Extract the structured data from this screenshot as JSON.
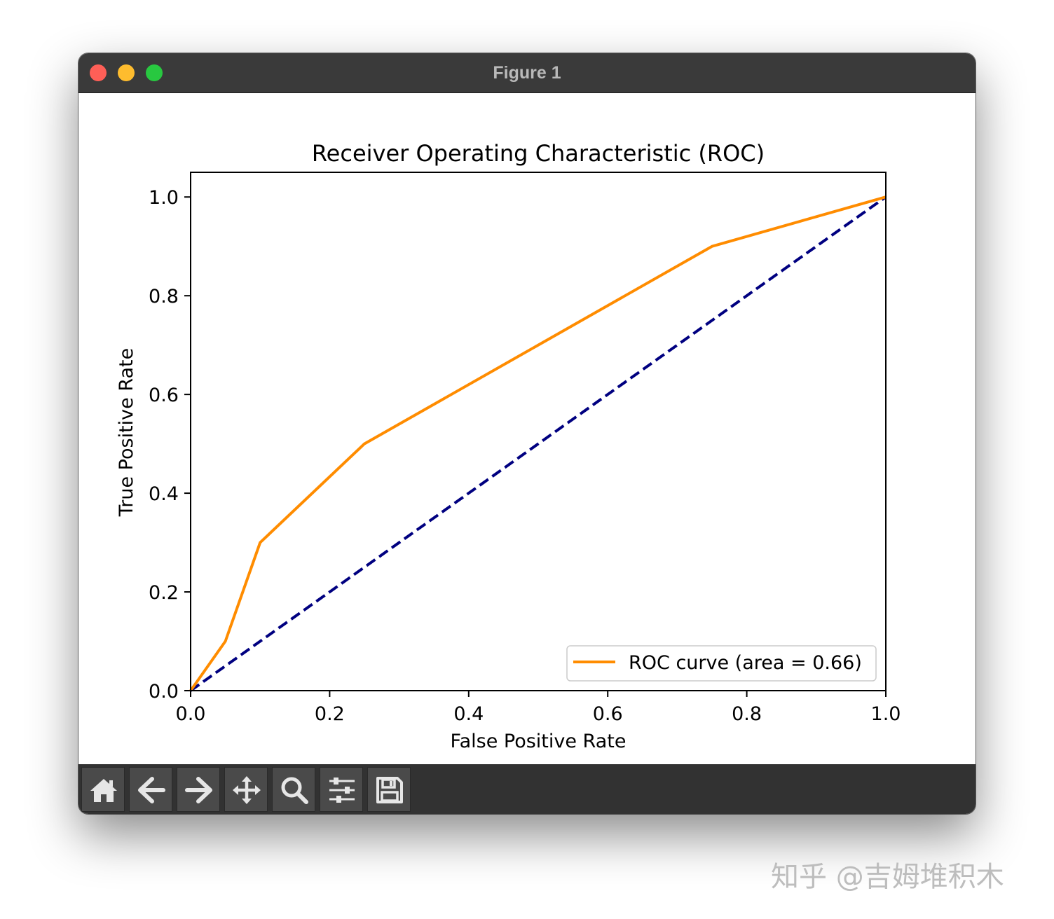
{
  "window": {
    "title": "Figure 1"
  },
  "toolbar": {
    "buttons": [
      {
        "icon": "home-icon",
        "name": "home-button"
      },
      {
        "icon": "back-arrow-icon",
        "name": "back-button"
      },
      {
        "icon": "forward-arrow-icon",
        "name": "forward-button"
      },
      {
        "icon": "move-icon",
        "name": "pan-button"
      },
      {
        "icon": "magnifier-icon",
        "name": "zoom-button"
      },
      {
        "icon": "sliders-icon",
        "name": "configure-subplots-button"
      },
      {
        "icon": "floppy-disk-icon",
        "name": "save-button"
      }
    ]
  },
  "watermark": "知乎 @吉姆堆积木",
  "chart_data": {
    "type": "line",
    "title": "Receiver Operating Characteristic (ROC)",
    "xlabel": "False Positive Rate",
    "ylabel": "True Positive Rate",
    "xlim": [
      0.0,
      1.0
    ],
    "ylim": [
      0.0,
      1.05
    ],
    "x_ticks": [
      "0.0",
      "0.2",
      "0.4",
      "0.6",
      "0.8",
      "1.0"
    ],
    "y_ticks": [
      "0.0",
      "0.2",
      "0.4",
      "0.6",
      "0.8",
      "1.0"
    ],
    "grid": false,
    "legend": {
      "placement": "lower-right"
    },
    "series": [
      {
        "name": "ROC curve (area = 0.66)",
        "color": "#ff8c00",
        "style": "solid",
        "x": [
          0.0,
          0.05,
          0.1,
          0.25,
          0.75,
          1.0
        ],
        "y": [
          0.0,
          0.1,
          0.3,
          0.5,
          0.9,
          1.0
        ]
      },
      {
        "color": "#000080",
        "style": "dashed",
        "x": [
          0.0,
          1.0
        ],
        "y": [
          0.0,
          1.0
        ]
      }
    ]
  }
}
